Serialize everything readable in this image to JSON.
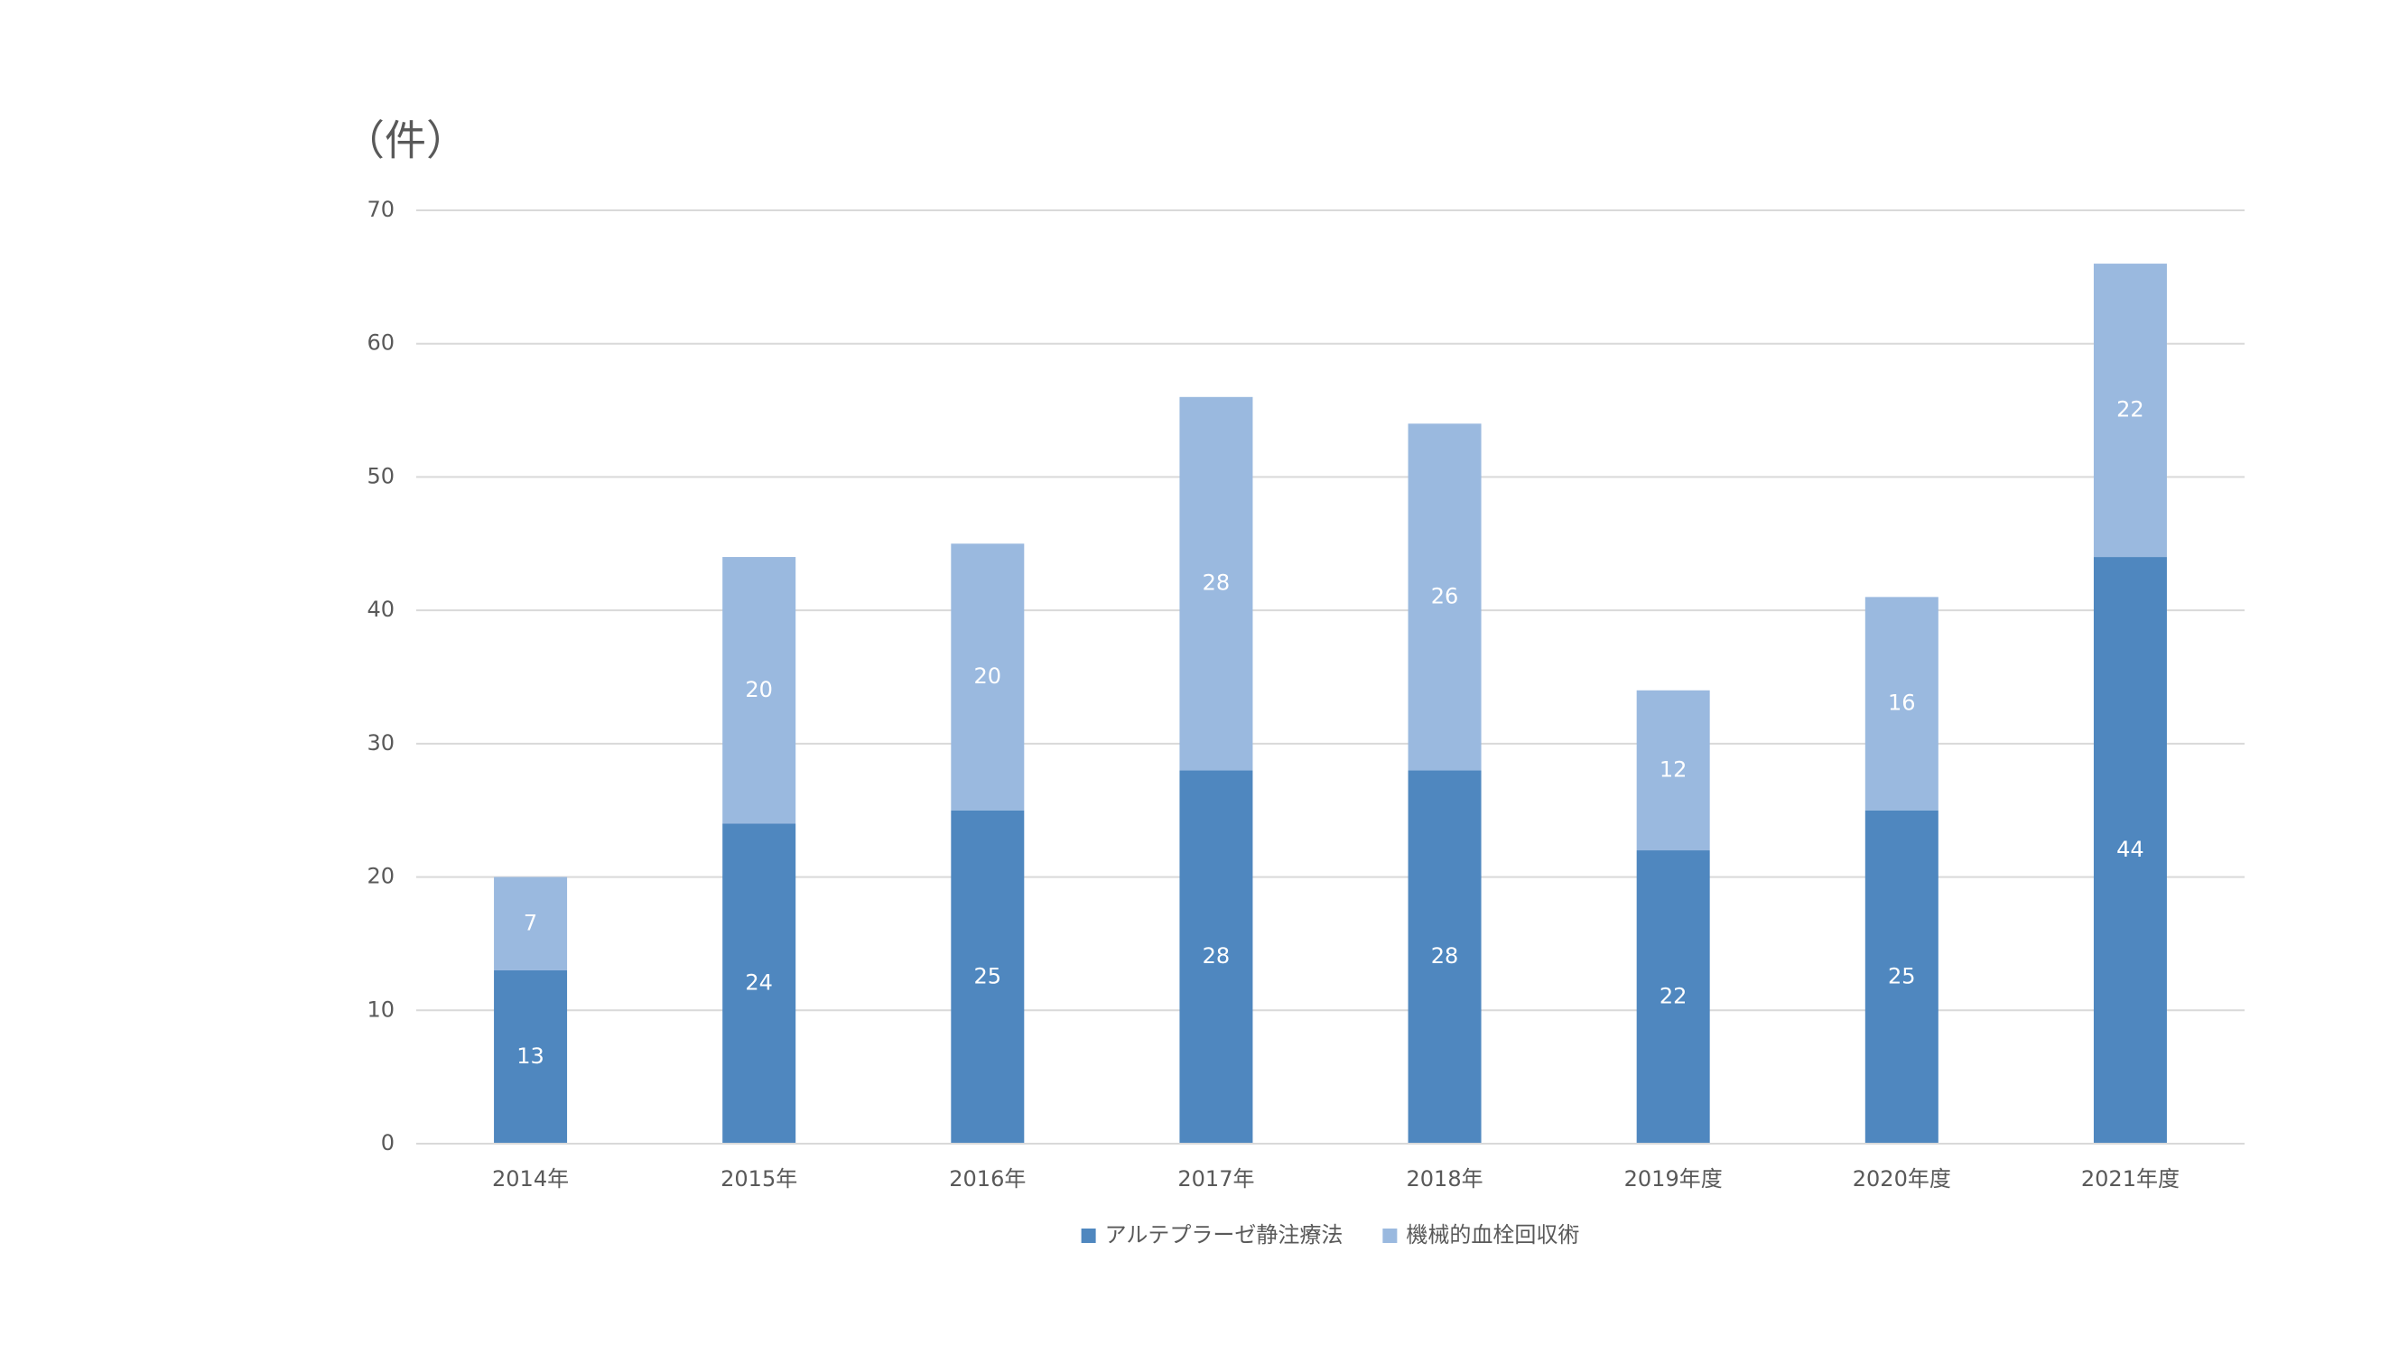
{
  "chart_data": {
    "type": "stacked_bar",
    "unit_label": "（件）",
    "categories": [
      "2014年",
      "2015年",
      "2016年",
      "2017年",
      "2018年",
      "2019年度",
      "2020年度",
      "2021年度"
    ],
    "series": [
      {
        "name": "アルテプラーゼ静注療法",
        "color": "#4f87bf",
        "values": [
          13,
          24,
          25,
          28,
          28,
          22,
          25,
          44
        ]
      },
      {
        "name": "機械的血栓回収術",
        "color": "#9ab9df",
        "values": [
          7,
          20,
          20,
          28,
          26,
          12,
          16,
          22
        ]
      }
    ],
    "ylim": [
      0,
      70
    ],
    "yticks": [
      0,
      10,
      20,
      30,
      40,
      50,
      60,
      70
    ],
    "grid": true,
    "legend": "bottom"
  }
}
